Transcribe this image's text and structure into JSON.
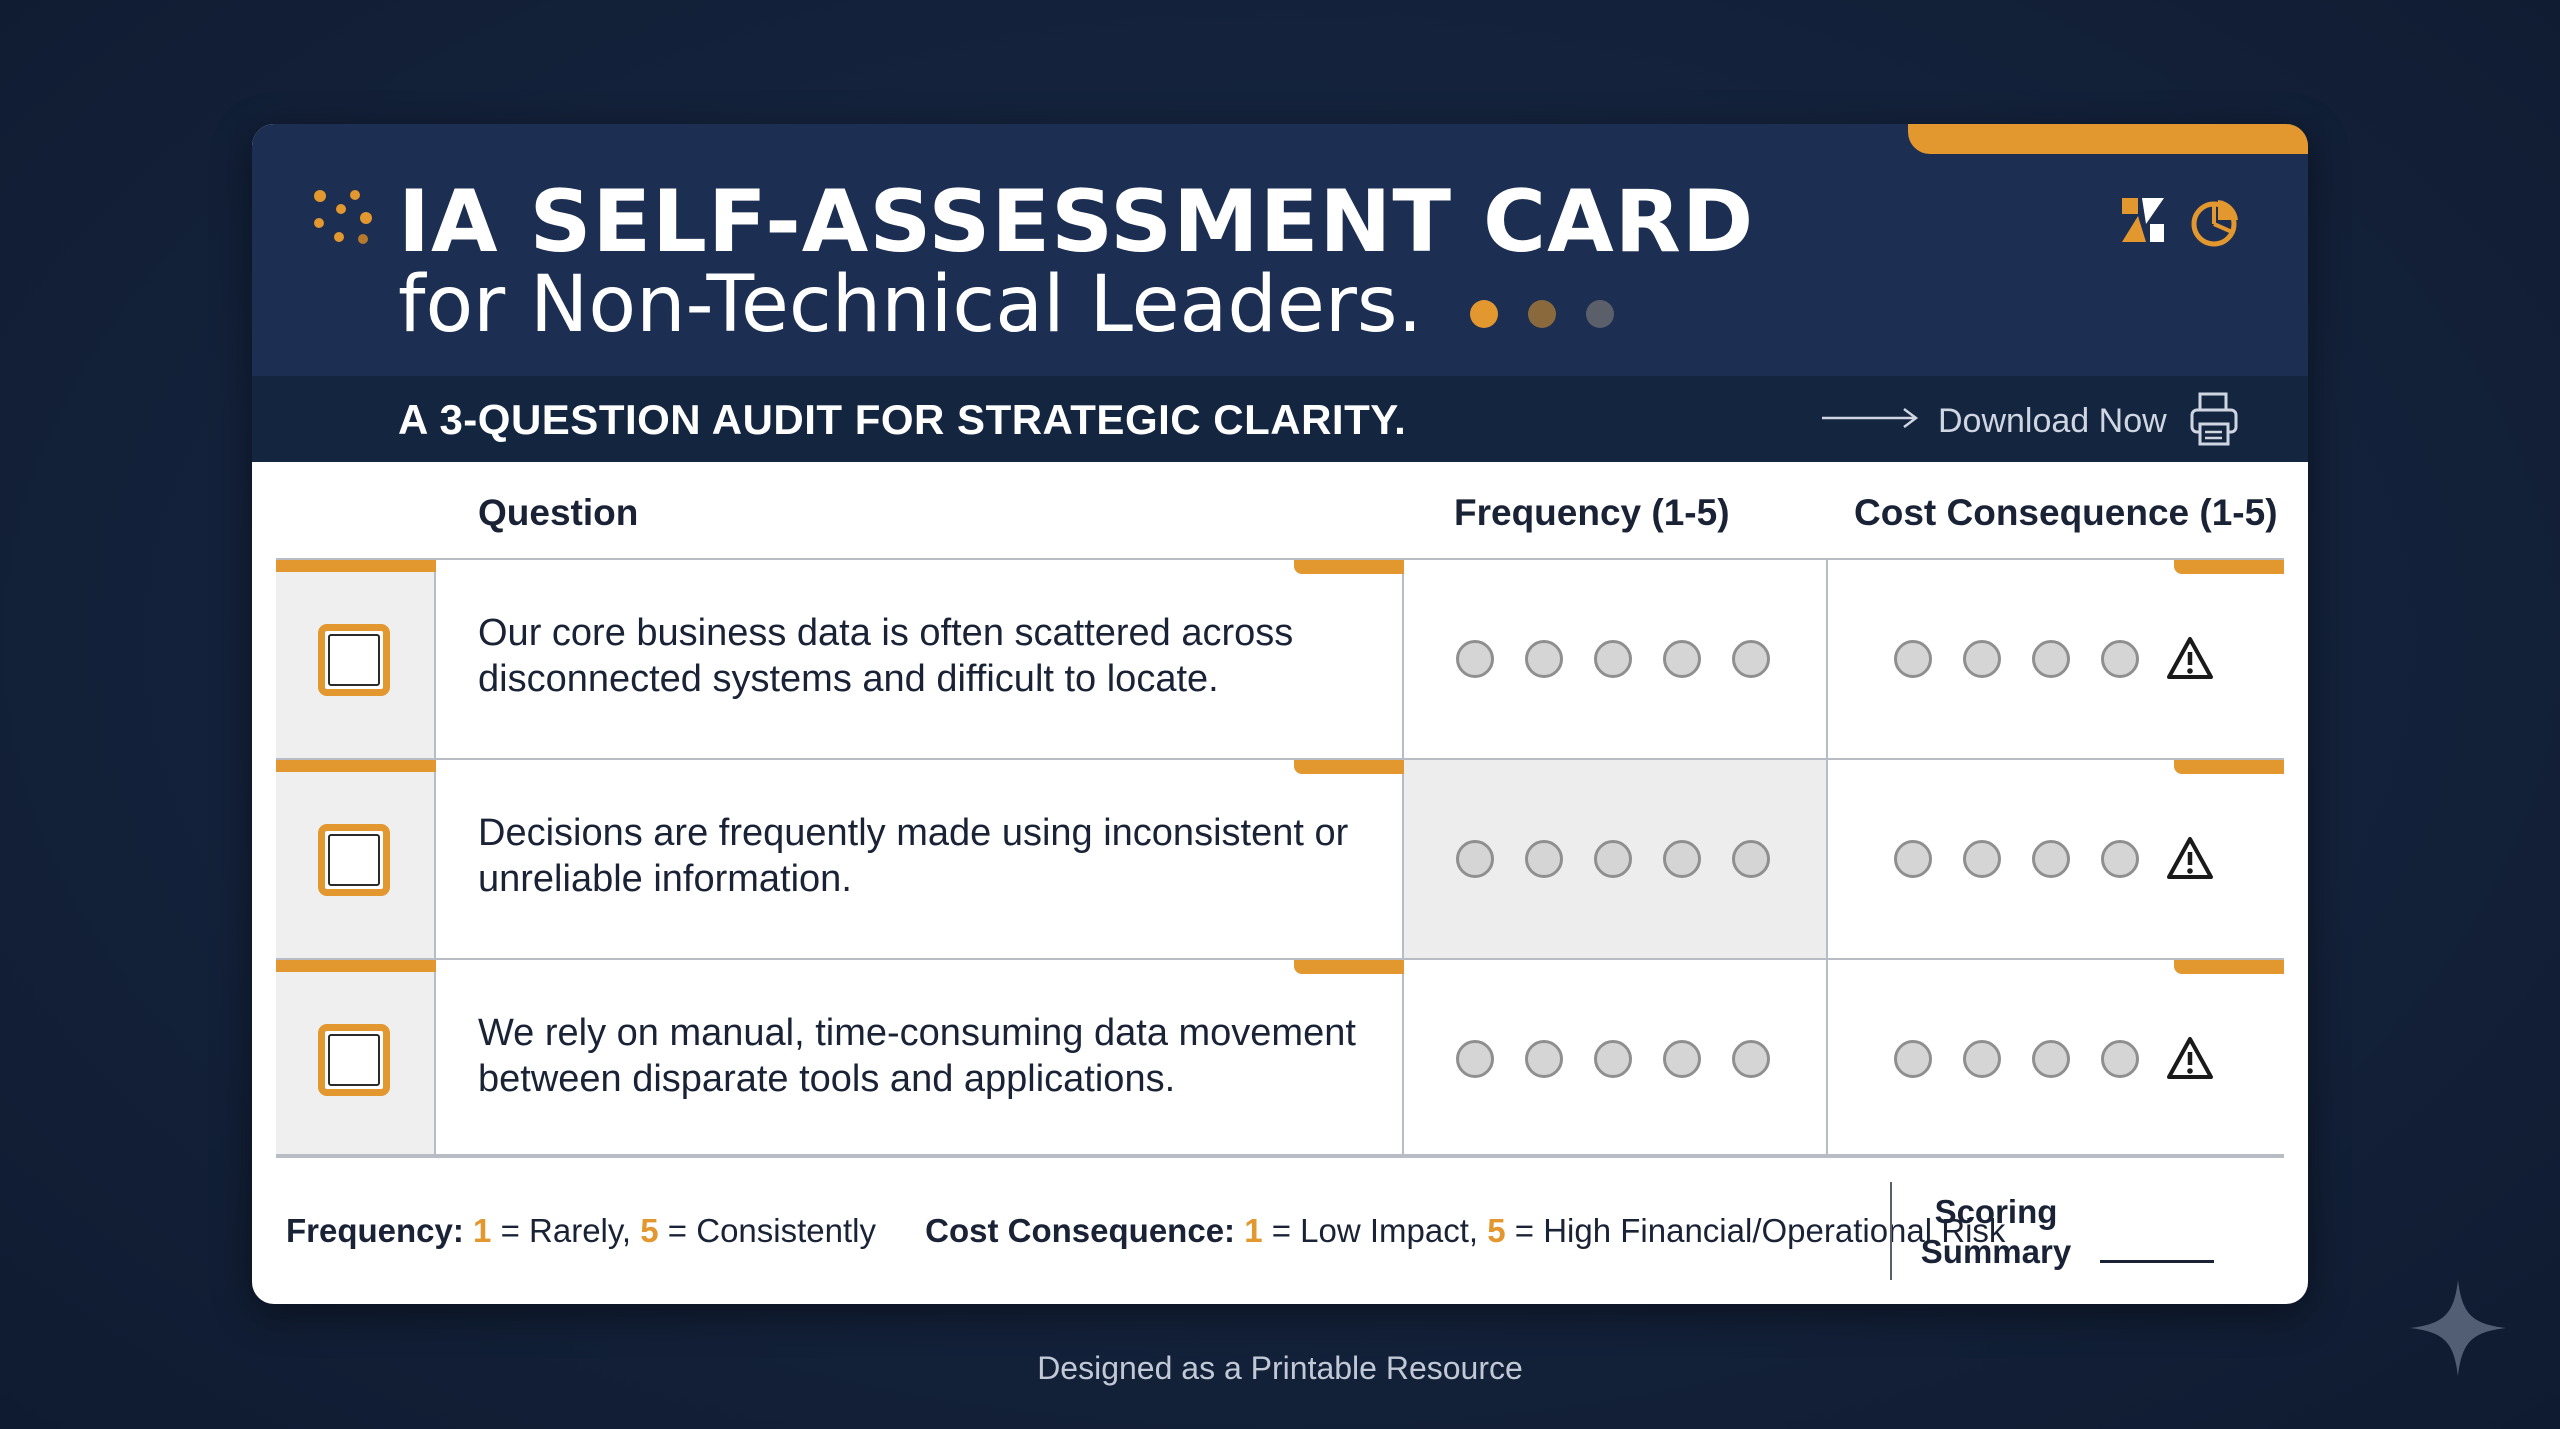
{
  "header": {
    "title": "IA SELF-ASSESSMENT CARD",
    "subtitle": "for Non-Technical Leaders.",
    "tagline": "A 3-QUESTION AUDIT FOR STRATEGIC CLARITY.",
    "download_label": "Download Now",
    "icons": [
      "chart-logo-icon",
      "pie-chart-icon",
      "printer-icon",
      "arrow-right-icon"
    ]
  },
  "table": {
    "columns": [
      "Question",
      "Frequency (1-5)",
      "Cost Consequence (1-5)"
    ],
    "rows": [
      {
        "question": "Our core business data is often scattered across disconnected systems and difficult to locate."
      },
      {
        "question": "Decisions are frequently made using inconsistent or unreliable information."
      },
      {
        "question": "We rely on manual, time-consuming data movement between disparate tools and applications."
      }
    ]
  },
  "legend": {
    "frequency_label": "Frequency:",
    "frequency_low_num": "1",
    "frequency_low_text": " = Rarely, ",
    "frequency_high_num": "5",
    "frequency_high_text": " = Consistently",
    "cost_label": "Cost Consequence:",
    "cost_low_num": "1",
    "cost_low_text": " = Low Impact, ",
    "cost_high_num": "5",
    "cost_high_text": " = High Financial/Operational Risk",
    "scoring_line1": "Scoring",
    "scoring_line2": "Summary"
  },
  "footer": {
    "text": "Designed as a Printable Resource"
  },
  "colors": {
    "background": "#13213a",
    "header": "#1c2f52",
    "accent": "#e2972f",
    "text": "#1a2236"
  }
}
